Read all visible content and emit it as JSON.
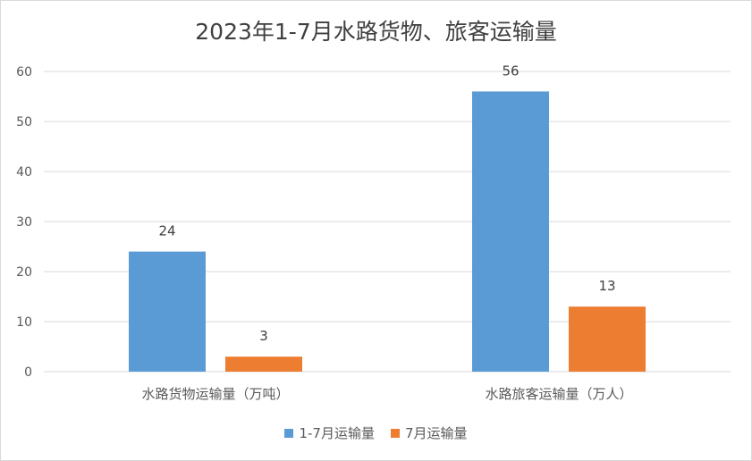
{
  "chart_data": {
    "type": "bar",
    "title": "2023年1-7月水路货物、旅客运输量",
    "categories": [
      "水路货物运输量（万吨）",
      "水路旅客运输量（万人）"
    ],
    "series": [
      {
        "name": "1-7月运输量",
        "values": [
          24,
          56
        ],
        "color": "#5b9bd5"
      },
      {
        "name": "7月运输量",
        "values": [
          3,
          13
        ],
        "color": "#ed7d31"
      }
    ],
    "ylim": [
      0,
      60
    ],
    "yticks": [
      0,
      10,
      20,
      30,
      40,
      50,
      60
    ],
    "grid": true,
    "legend_position": "bottom",
    "data_labels": true
  }
}
